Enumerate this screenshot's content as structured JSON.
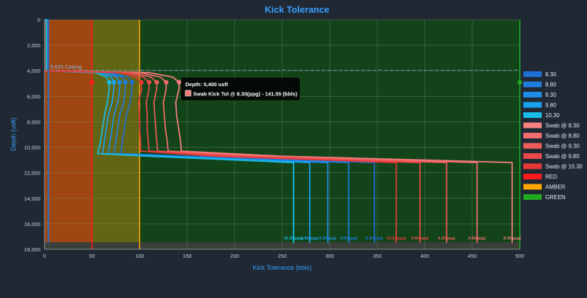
{
  "chart_data": {
    "type": "line",
    "title": "Kick Tolerance",
    "xlabel": "Kick Tolerance (bbls)",
    "ylabel": "Depth (usft)",
    "xlim": [
      0,
      500
    ],
    "ylim": [
      0,
      18000
    ],
    "y_reversed": true,
    "x_ticks": [
      0,
      50,
      100,
      150,
      200,
      250,
      300,
      350,
      400,
      450,
      500
    ],
    "y_ticks": [
      0,
      2000,
      4000,
      6000,
      8000,
      10000,
      12000,
      14000,
      16000,
      18000
    ],
    "y_tick_labels": [
      "0",
      "2,000",
      "4,000",
      "6,000",
      "8,000",
      "10,000",
      "12,000",
      "14,000",
      "16,000",
      "18,000"
    ],
    "grid": true,
    "legend_position": "right",
    "zones": [
      {
        "name": "RED",
        "from": 0,
        "to": 50,
        "color": "#ff1a1a"
      },
      {
        "name": "AMBER",
        "from": 50,
        "to": 100,
        "color": "#ffa500"
      },
      {
        "name": "GREEN",
        "from": 100,
        "to": 500,
        "color": "#22aa22"
      }
    ],
    "casing": {
      "label": "9.625 Casing",
      "depth": 3950
    },
    "tooltip": {
      "title": "Depth: 5,400 usft",
      "text": "Swab Kick Tol @ 8.30(ppg) - 141.55 (bbls)",
      "color": "#f07878"
    },
    "series": [
      {
        "name": "8.30",
        "color": "#1f6fd6",
        "end_label": "8.30(ppg)",
        "drill": {
          "x": [
            0,
            4,
            4,
            4
          ],
          "y": [
            0,
            0,
            3950,
            17500
          ]
        }
      },
      {
        "name": "8.80",
        "color": "#1f7fde",
        "end_label": "8.80(ppg)",
        "drill": {
          "x": [
            0,
            2,
            2
          ],
          "y": [
            0,
            0,
            3950
          ]
        }
      },
      {
        "name": "9.30",
        "color": "#1d8fe8",
        "end_label": "9.30(ppg)",
        "drill": {
          "x": [
            0,
            2,
            2
          ],
          "y": [
            0,
            0,
            3950
          ]
        }
      },
      {
        "name": "9.80",
        "color": "#1ba2f0",
        "end_label": "9.80(ppg)",
        "drill": {
          "x": [
            0,
            2,
            2
          ],
          "y": [
            0,
            0,
            3950
          ]
        }
      },
      {
        "name": "10.30",
        "color": "#18bde8",
        "end_label": "10.30(ppg)",
        "drill": {
          "x": [
            0,
            2,
            2
          ],
          "y": [
            0,
            0,
            3950
          ]
        }
      },
      {
        "name": "Swab @ 8.30",
        "color": "#f58080",
        "end_label": "8.30(ppg)"
      },
      {
        "name": "Swab @ 8.80",
        "color": "#f26e6e",
        "end_label": "8.80(ppg)"
      },
      {
        "name": "Swab @ 9.30",
        "color": "#ef5c5c",
        "end_label": "9.30(ppg)"
      },
      {
        "name": "Swab @ 9.80",
        "color": "#ec4a4a",
        "end_label": "9.80(ppg)"
      },
      {
        "name": "Swab @ 10.30",
        "color": "#e83838",
        "end_label": "10.30(ppg)"
      }
    ],
    "profiles": [
      {
        "series": "8.30",
        "x": [
          0,
          70,
          88,
          92,
          92,
          90,
          86,
          84,
          82,
          80,
          150,
          270,
          347,
          347
        ],
        "y": [
          4000,
          4150,
          4500,
          4900,
          5400,
          6500,
          7500,
          8500,
          9500,
          10500,
          10700,
          11000,
          11200,
          17500
        ]
      },
      {
        "series": "8.80",
        "x": [
          0,
          66,
          82,
          85,
          85,
          83,
          79,
          77,
          75,
          73,
          140,
          250,
          320,
          320
        ],
        "y": [
          4000,
          4150,
          4500,
          4900,
          5400,
          6500,
          7500,
          8500,
          9500,
          10500,
          10700,
          11000,
          11200,
          17500
        ]
      },
      {
        "series": "9.30",
        "x": [
          0,
          62,
          76,
          79,
          79,
          77,
          73,
          71,
          69,
          67,
          130,
          230,
          298,
          298
        ],
        "y": [
          4000,
          4150,
          4500,
          4900,
          5400,
          6500,
          7500,
          8500,
          9500,
          10500,
          10700,
          11000,
          11200,
          17500
        ]
      },
      {
        "series": "9.80",
        "x": [
          0,
          58,
          70,
          73,
          73,
          71,
          67,
          65,
          63,
          61,
          120,
          215,
          279,
          279
        ],
        "y": [
          4000,
          4150,
          4500,
          4900,
          5400,
          6500,
          7500,
          8500,
          9500,
          10500,
          10700,
          11000,
          11200,
          17500
        ]
      },
      {
        "series": "10.30",
        "x": [
          0,
          54,
          65,
          68,
          68,
          66,
          63,
          61,
          59,
          56,
          110,
          200,
          262,
          262
        ],
        "y": [
          4000,
          4150,
          4500,
          4900,
          5400,
          6500,
          7500,
          8500,
          9500,
          10500,
          10700,
          11000,
          11200,
          17500
        ]
      },
      {
        "series": "Swab @ 8.30",
        "x": [
          0,
          110,
          135,
          141.55,
          141.55,
          138,
          139,
          141,
          143,
          144,
          250,
          400,
          492,
          492
        ],
        "y": [
          4000,
          4150,
          4500,
          4900,
          5400,
          6500,
          7500,
          8500,
          9500,
          10300,
          10700,
          11000,
          11200,
          17500
        ]
      },
      {
        "series": "Swab @ 8.80",
        "x": [
          0,
          100,
          122,
          128,
          128,
          125,
          126,
          127,
          129,
          130,
          230,
          370,
          455,
          455
        ],
        "y": [
          4000,
          4150,
          4500,
          4900,
          5400,
          6500,
          7500,
          8500,
          9500,
          10300,
          10700,
          11000,
          11200,
          17500
        ]
      },
      {
        "series": "Swab @ 9.30",
        "x": [
          0,
          92,
          112,
          118,
          118,
          115,
          116,
          117,
          118,
          119,
          210,
          340,
          423,
          423
        ],
        "y": [
          4000,
          4150,
          4500,
          4900,
          5400,
          6500,
          7500,
          8500,
          9500,
          10300,
          10700,
          11000,
          11200,
          17500
        ]
      },
      {
        "series": "Swab @ 9.80",
        "x": [
          0,
          86,
          104,
          110,
          110,
          107,
          108,
          108,
          109,
          110,
          195,
          315,
          395,
          395
        ],
        "y": [
          4000,
          4150,
          4500,
          4900,
          5400,
          6500,
          7500,
          8500,
          9500,
          10300,
          10700,
          11000,
          11200,
          17500
        ]
      },
      {
        "series": "Swab @ 10.30",
        "x": [
          0,
          80,
          96,
          102,
          102,
          99,
          100,
          100,
          101,
          101,
          180,
          295,
          370,
          370
        ],
        "y": [
          4000,
          4150,
          4500,
          4900,
          5400,
          6500,
          7500,
          8500,
          9500,
          10300,
          10700,
          11000,
          11200,
          17500
        ]
      }
    ],
    "markers": [
      {
        "series": "8.30",
        "x": 92,
        "y": 4900
      },
      {
        "series": "8.80",
        "x": 85,
        "y": 4900
      },
      {
        "series": "9.30",
        "x": 79,
        "y": 4900
      },
      {
        "series": "9.80",
        "x": 73,
        "y": 4900
      },
      {
        "series": "10.30",
        "x": 68,
        "y": 4900
      },
      {
        "series": "Swab @ 8.30",
        "x": 141.55,
        "y": 4900
      },
      {
        "series": "Swab @ 8.80",
        "x": 128,
        "y": 4900
      },
      {
        "series": "Swab @ 9.30",
        "x": 118,
        "y": 4900
      },
      {
        "series": "Swab @ 9.80",
        "x": 110,
        "y": 4900
      },
      {
        "series": "Swab @ 10.30",
        "x": 102,
        "y": 4900
      },
      {
        "series": "RED",
        "x": 50,
        "y": 4900
      },
      {
        "series": "GREEN",
        "x": 500,
        "y": 4900
      }
    ]
  }
}
